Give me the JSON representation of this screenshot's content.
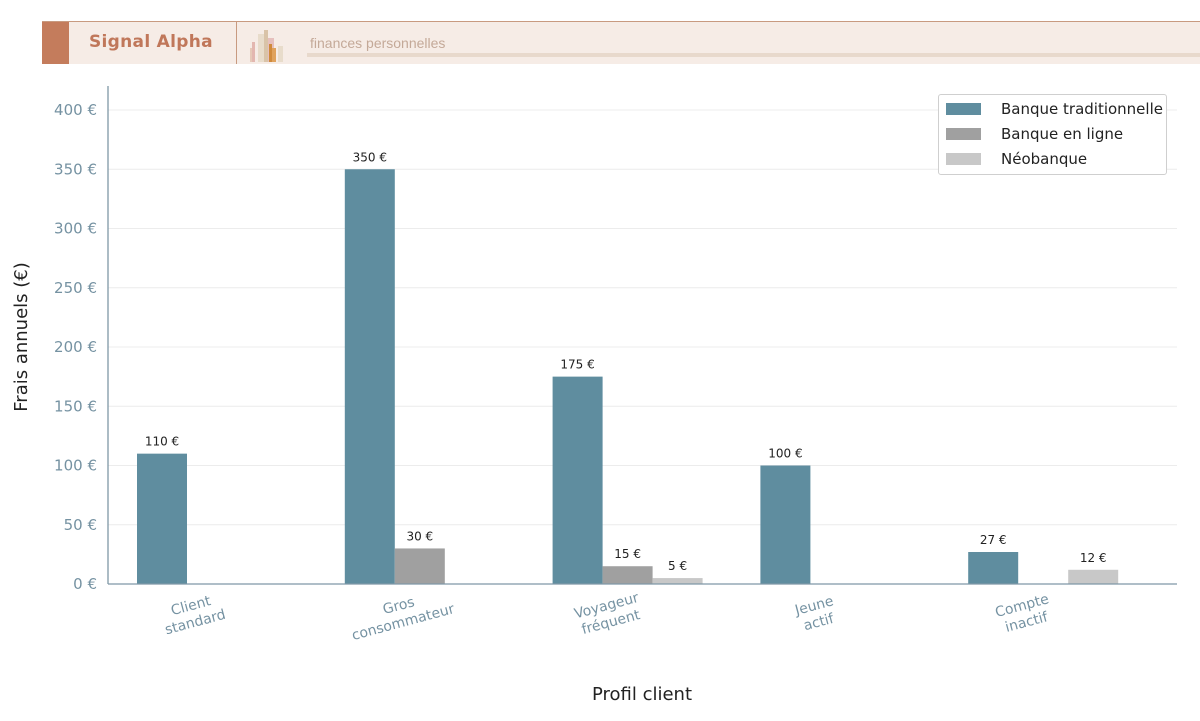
{
  "header": {
    "brand": "Signal Alpha",
    "subtitle": "finances personnelles",
    "logo_icon": "bar-chart-logo-icon"
  },
  "colors": {
    "traditional": "#5f8d9f",
    "online": "#a0a0a0",
    "neo": "#c8c8c8",
    "header_accent": "#c47c5c"
  },
  "legend": {
    "items": [
      {
        "label": "Banque traditionnelle",
        "color": "#5f8d9f"
      },
      {
        "label": "Banque en ligne",
        "color": "#a0a0a0"
      },
      {
        "label": "Néobanque",
        "color": "#c8c8c8"
      }
    ]
  },
  "axes": {
    "ylabel": "Frais annuels (€)",
    "xlabel": "Profil client",
    "yticks": [
      "0 €",
      "50 €",
      "100 €",
      "150 €",
      "200 €",
      "250 €",
      "300 €",
      "350 €",
      "400 €"
    ]
  },
  "chart_data": {
    "type": "bar",
    "title": "",
    "xlabel": "Profil client",
    "ylabel": "Frais annuels (€)",
    "ylim": [
      0,
      420
    ],
    "grid": "horizontal",
    "legend_position": "upper right",
    "categories": [
      "Client standard",
      "Gros consommateur",
      "Voyageur fréquent",
      "Jeune actif",
      "Compte inactif"
    ],
    "series": [
      {
        "name": "Banque traditionnelle",
        "values": [
          110,
          350,
          175,
          100,
          27
        ],
        "labels": [
          "110 €",
          "350 €",
          "175 €",
          "100 €",
          "27 €"
        ]
      },
      {
        "name": "Banque en ligne",
        "values": [
          0,
          30,
          15,
          0,
          0
        ],
        "labels": [
          "",
          "30 €",
          "15 €",
          "",
          ""
        ]
      },
      {
        "name": "Néobanque",
        "values": [
          0,
          0,
          5,
          0,
          12
        ],
        "labels": [
          "",
          "",
          "5 €",
          "",
          "12 €"
        ]
      }
    ],
    "category_lines": [
      [
        "Client",
        "standard"
      ],
      [
        "Gros",
        "consommateur"
      ],
      [
        "Voyageur",
        "fréquent"
      ],
      [
        "Jeune",
        "actif"
      ],
      [
        "Compte",
        "inactif"
      ]
    ]
  }
}
